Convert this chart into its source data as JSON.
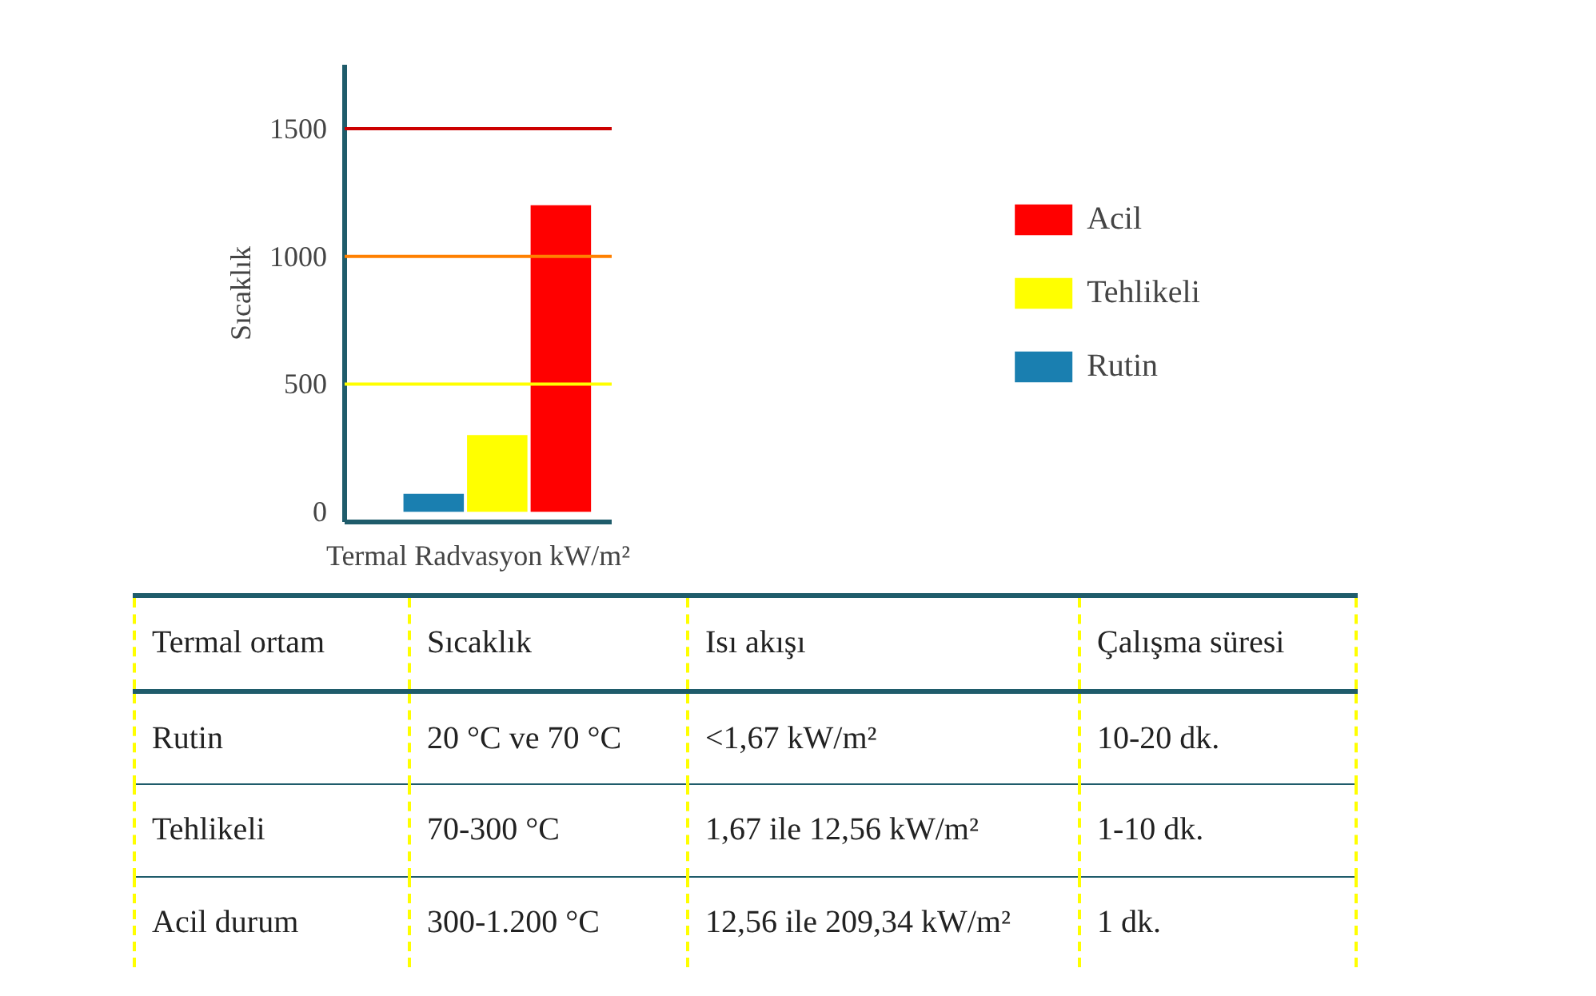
{
  "chart_data": {
    "type": "bar",
    "stacked": true,
    "categories": [
      null,
      null,
      null
    ],
    "series": [
      {
        "name": "Rutin",
        "color": "#1a7fb0",
        "values": [
          70,
          null,
          null
        ]
      },
      {
        "name": "Tehlikeli",
        "color": "#ffff00",
        "values": [
          null,
          300,
          null
        ]
      },
      {
        "name": "Acil",
        "color": "#ff0000",
        "values": [
          null,
          null,
          1200
        ]
      }
    ],
    "xlabel": "Termal Radvasyon kW/m²",
    "ylabel": "Sıcaklık",
    "ylim": [
      -40,
      1750
    ],
    "yticks": [
      0,
      500,
      1000,
      1500
    ],
    "grid": false,
    "legend": "right",
    "ref_lines": [
      {
        "axis": "y",
        "value": 500,
        "color": "#ffff00"
      },
      {
        "axis": "y",
        "value": 1000,
        "color": "#ff8000"
      },
      {
        "axis": "y",
        "value": 1500,
        "color": "#cc0000"
      }
    ],
    "annotations": [
      "Termal ortam",
      "Sıcaklık",
      "Isı akışı",
      "Çalışma süresi",
      "Rutin",
      "20 °C ve 70 °C",
      "<1,67 kW/m²",
      "10-20 dk.",
      "Tehlikeli",
      "70-300 °C",
      "1,67 ile 12,56 kW/m²",
      "1-10 dk.",
      "Acil durum",
      "300-1.200 °C",
      "12,56 ile 209,34 kW/m²",
      "1 dk."
    ]
  }
}
